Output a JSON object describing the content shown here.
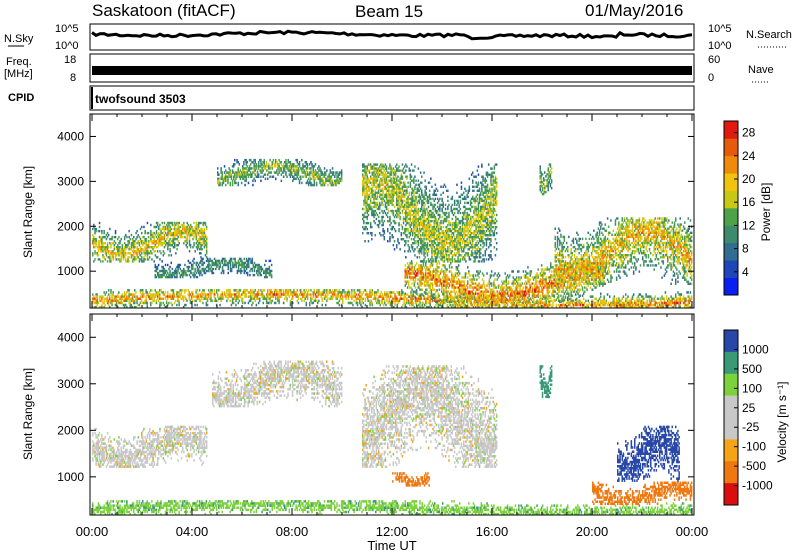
{
  "header": {
    "title": "Saskatoon (fitACF)",
    "beam": "Beam 15",
    "date": "01/May/2016"
  },
  "noise_panel": {
    "left_label": "N.Sky",
    "right_label": "N.Search",
    "y_ticks": [
      "10^5",
      "10^0"
    ],
    "right_ticks": [
      "10^5",
      "10^0"
    ]
  },
  "freq_panel": {
    "left_label_1": "Freq.",
    "left_label_2": "[MHz]",
    "y_ticks": [
      "18",
      "8"
    ],
    "right_label": "Nave",
    "right_ticks": [
      "60",
      "0"
    ]
  },
  "cpid_panel": {
    "left_label": "CPID",
    "program": "twofsound 3503"
  },
  "x_axis": {
    "label": "Time UT",
    "ticks": [
      "00:00",
      "04:00",
      "08:00",
      "12:00",
      "16:00",
      "20:00",
      "00:00"
    ]
  },
  "colors": {
    "power": [
      "#0a1ff0",
      "#1f46b8",
      "#2f6d91",
      "#3d8a6c",
      "#4ea34a",
      "#c8c813",
      "#f0c30c",
      "#f08a0a",
      "#e55a0c",
      "#e01a0e"
    ],
    "velocity": [
      "#d90f0f",
      "#f07810",
      "#f4a515",
      "#c8c8c8",
      "#c8c8c8",
      "#7cd23c",
      "#3a9a78",
      "#2848a8"
    ]
  },
  "chart_data": [
    {
      "type": "heatmap",
      "title": "",
      "ylabel": "Slant Range [km]",
      "xlabel": "",
      "x_unit": "hours UT",
      "x_range": [
        0,
        24
      ],
      "ylim": [
        180,
        4500
      ],
      "y_ticks": [
        1000,
        2000,
        3000,
        4000
      ],
      "colorbar": {
        "label": "Power [dB]",
        "ticks": [
          4,
          8,
          12,
          16,
          20,
          24,
          28
        ],
        "range": [
          0,
          30
        ]
      },
      "echo_regions": [
        {
          "t_start": 0.0,
          "t_end": 4.6,
          "r_start": 1200,
          "r_end": 2100,
          "power_peak_db": 22
        },
        {
          "t_start": 2.5,
          "t_end": 7.2,
          "r_start": 850,
          "r_end": 1300,
          "power_peak_db": 14
        },
        {
          "t_start": 5.0,
          "t_end": 10.0,
          "r_start": 2900,
          "r_end": 3500,
          "power_peak_db": 18
        },
        {
          "t_start": 0.0,
          "t_end": 24.0,
          "r_start": 180,
          "r_end": 600,
          "power_peak_db": 26
        },
        {
          "t_start": 10.8,
          "t_end": 16.2,
          "r_start": 1200,
          "r_end": 3400,
          "power_peak_db": 20
        },
        {
          "t_start": 12.5,
          "t_end": 20.5,
          "r_start": 300,
          "r_end": 1200,
          "power_peak_db": 28
        },
        {
          "t_start": 17.9,
          "t_end": 18.4,
          "r_start": 2700,
          "r_end": 3400,
          "power_peak_db": 18
        },
        {
          "t_start": 18.5,
          "t_end": 24.0,
          "r_start": 700,
          "r_end": 2200,
          "power_peak_db": 24
        }
      ]
    },
    {
      "type": "heatmap",
      "title": "",
      "ylabel": "Slant Range [km]",
      "xlabel": "Time UT",
      "x_unit": "hours UT",
      "x_range": [
        0,
        24
      ],
      "ylim": [
        180,
        4500
      ],
      "y_ticks": [
        1000,
        2000,
        3000,
        4000
      ],
      "colorbar": {
        "label": "Velocity [m s⁻¹]",
        "ticks": [
          "1000",
          "500",
          "100",
          "25",
          "-25",
          "-100",
          "-500",
          "-1000"
        ]
      },
      "echo_regions": [
        {
          "t_start": 0.0,
          "t_end": 4.6,
          "r_start": 1200,
          "r_end": 2100,
          "velocity_ms": 0
        },
        {
          "t_start": 4.8,
          "t_end": 10.0,
          "r_start": 2500,
          "r_end": 3500,
          "velocity_ms": 0
        },
        {
          "t_start": 10.8,
          "t_end": 16.2,
          "r_start": 1200,
          "r_end": 3400,
          "velocity_ms": 0
        },
        {
          "t_start": 0.0,
          "t_end": 24.0,
          "r_start": 180,
          "r_end": 500,
          "velocity_ms": 80
        },
        {
          "t_start": 12.0,
          "t_end": 13.5,
          "r_start": 800,
          "r_end": 1100,
          "velocity_ms": -150
        },
        {
          "t_start": 17.9,
          "t_end": 18.4,
          "r_start": 2700,
          "r_end": 3400,
          "velocity_ms": 300
        },
        {
          "t_start": 20.0,
          "t_end": 24.0,
          "r_start": 400,
          "r_end": 900,
          "velocity_ms": -150
        },
        {
          "t_start": 21.0,
          "t_end": 23.5,
          "r_start": 900,
          "r_end": 2100,
          "velocity_ms": 700
        }
      ]
    }
  ]
}
